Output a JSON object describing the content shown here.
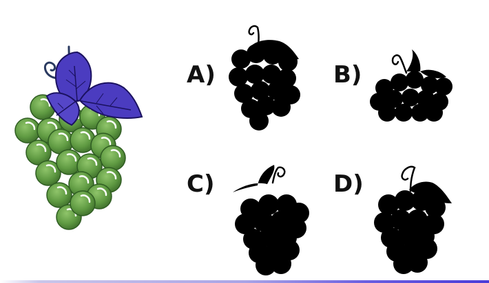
{
  "options": [
    {
      "key": "A",
      "label": "A)"
    },
    {
      "key": "B",
      "label": "B)"
    },
    {
      "key": "C",
      "label": "C)"
    },
    {
      "key": "D",
      "label": "D)"
    }
  ],
  "colors": {
    "grape_fill": "#6aa04a",
    "grape_outline": "#2f5d22",
    "leaf_fill": "#4b3cc0",
    "leaf_vein": "#1b1260",
    "silhouette": "#000000",
    "tendril": "#2a3a60"
  }
}
